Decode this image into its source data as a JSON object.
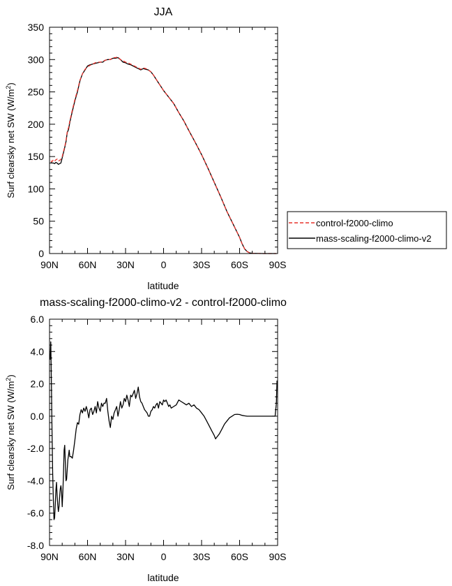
{
  "chart_data": [
    {
      "type": "line",
      "title": "JJA",
      "xlabel": "latitude",
      "ylabel": "Surf clearsky net SW (W/m²)",
      "ylabel_main": "Surf clearsky net SW (W/m",
      "ylabel_sup": "2",
      "ylabel_end": ")",
      "xlim": [
        90,
        -90
      ],
      "ylim": [
        0,
        350
      ],
      "x_ticks": [
        90,
        60,
        30,
        0,
        -30,
        -60,
        -90
      ],
      "x_tick_labels": [
        "90N",
        "60N",
        "30N",
        "0",
        "30S",
        "60S",
        "90S"
      ],
      "y_ticks": [
        0,
        50,
        100,
        150,
        200,
        250,
        300,
        350
      ],
      "y_tick_labels": [
        "0",
        "50",
        "100",
        "150",
        "200",
        "250",
        "300",
        "350"
      ],
      "legend": {
        "placement": "right",
        "entries": [
          {
            "label": "control-f2000-climo",
            "color": "#e8322c",
            "dash": "dashed"
          },
          {
            "label": "mass-scaling-f2000-climo-v2",
            "color": "#000000",
            "dash": "solid"
          }
        ]
      },
      "series": [
        {
          "name": "control-f2000-climo",
          "color": "#e8322c",
          "dash": "dashed",
          "x": [
            89,
            88,
            87,
            86,
            85,
            84,
            83,
            82,
            81,
            80,
            79,
            78,
            77,
            76,
            75,
            74,
            72,
            70,
            68,
            66,
            64,
            62,
            60,
            58,
            56,
            54,
            52,
            50,
            48,
            46,
            44,
            42,
            40,
            38,
            36,
            34,
            32,
            30,
            28,
            26,
            24,
            22,
            20,
            18,
            16,
            14,
            12,
            10,
            8,
            6,
            4,
            2,
            0,
            -4,
            -8,
            -12,
            -16,
            -20,
            -25,
            -30,
            -35,
            -40,
            -45,
            -50,
            -55,
            -60,
            -62,
            -64,
            -66,
            -68,
            -70,
            -75,
            -80,
            -85,
            -89
          ],
          "y": [
            143,
            142,
            145,
            143,
            145,
            146,
            143,
            144,
            146,
            150,
            158,
            165,
            175,
            188,
            195,
            205,
            222,
            238,
            252,
            268,
            278,
            285,
            289,
            291,
            293,
            295,
            296,
            296,
            297,
            299,
            300,
            300,
            303,
            303,
            304,
            300,
            298,
            296,
            295,
            293,
            291,
            289,
            287,
            285,
            287,
            286,
            284,
            281,
            276,
            270,
            264,
            258,
            252,
            242,
            232,
            218,
            205,
            190,
            172,
            153,
            132,
            110,
            88,
            65,
            45,
            25,
            15,
            7,
            3,
            1,
            0.3,
            0.1,
            0,
            0,
            0
          ]
        },
        {
          "name": "mass-scaling-f2000-climo-v2",
          "color": "#000000",
          "dash": "solid",
          "x": [
            89,
            88,
            87,
            86,
            85,
            84,
            83,
            82,
            81,
            80,
            79,
            78,
            77,
            76,
            75,
            74,
            72,
            70,
            68,
            66,
            64,
            62,
            60,
            58,
            56,
            54,
            52,
            50,
            48,
            46,
            44,
            42,
            40,
            38,
            36,
            34,
            32,
            30,
            28,
            26,
            24,
            22,
            20,
            18,
            16,
            14,
            12,
            10,
            8,
            6,
            4,
            2,
            0,
            -4,
            -8,
            -12,
            -16,
            -20,
            -25,
            -30,
            -35,
            -40,
            -45,
            -50,
            -55,
            -60,
            -62,
            -64,
            -66,
            -68,
            -70,
            -75,
            -80,
            -85,
            -89
          ],
          "y": [
            141,
            140,
            140,
            139,
            141,
            140,
            138,
            139,
            140,
            148,
            156,
            164,
            173,
            187,
            192,
            203,
            220,
            236,
            250,
            267,
            278,
            284,
            290,
            292,
            293,
            294,
            295,
            296,
            296,
            299,
            300,
            300,
            302,
            302,
            303,
            300,
            296,
            295,
            293,
            292,
            290,
            288,
            286,
            284,
            286,
            285,
            284,
            281,
            276,
            270,
            264,
            258,
            252,
            242,
            232,
            218,
            205,
            190,
            172,
            153,
            132,
            110,
            88,
            65,
            45,
            25,
            15,
            7,
            3,
            1,
            0.3,
            0.1,
            0,
            0,
            0
          ]
        }
      ]
    },
    {
      "type": "line",
      "title": "mass-scaling-f2000-climo-v2 - control-f2000-climo",
      "xlabel": "latitude",
      "ylabel": "Surf clearsky net SW (W/m²)",
      "ylabel_main": "Surf clearsky net SW (W/m",
      "ylabel_sup": "2",
      "ylabel_end": ")",
      "xlim": [
        90,
        -90
      ],
      "ylim": [
        -8.0,
        6.0
      ],
      "x_ticks": [
        90,
        60,
        30,
        0,
        -30,
        -60,
        -90
      ],
      "x_tick_labels": [
        "90N",
        "60N",
        "30N",
        "0",
        "30S",
        "60S",
        "90S"
      ],
      "y_ticks": [
        -8,
        -6,
        -4,
        -2,
        0,
        2,
        4,
        6
      ],
      "y_tick_labels": [
        "-8.0",
        "-6.0",
        "-4.0",
        "-2.0",
        "0.0",
        "2.0",
        "4.0",
        "6.0"
      ],
      "series": [
        {
          "name": "",
          "color": "#000000",
          "dash": "solid",
          "x": [
            89.5,
            89,
            88.5,
            88,
            87.5,
            87,
            86.5,
            86,
            85.5,
            85,
            84.5,
            84,
            83.5,
            83,
            82.5,
            82,
            81.5,
            81,
            80.5,
            80,
            79.5,
            79,
            78.5,
            78,
            77.5,
            77,
            76.5,
            76,
            75.5,
            75,
            74.5,
            74,
            73,
            72,
            71,
            70,
            69,
            68,
            67,
            66,
            65,
            64,
            63,
            62,
            61,
            60,
            59,
            58,
            57,
            56,
            55,
            54,
            53,
            52,
            51,
            50,
            49,
            48,
            47,
            46,
            45,
            44,
            43,
            42,
            41,
            40,
            39,
            38,
            37,
            36,
            35,
            34,
            33,
            32,
            31,
            30,
            29,
            28,
            27,
            26,
            25,
            24,
            23,
            22,
            21,
            20,
            19,
            18,
            17,
            16,
            15,
            14,
            13,
            12,
            11,
            10,
            9,
            8,
            7,
            6,
            5,
            4,
            3,
            2,
            1,
            0,
            -1,
            -2,
            -3,
            -4,
            -5,
            -6,
            -8,
            -10,
            -12,
            -14,
            -16,
            -18,
            -20,
            -22,
            -24,
            -26,
            -28,
            -30,
            -32,
            -34,
            -36,
            -38,
            -40,
            -41,
            -42,
            -44,
            -46,
            -48,
            -50,
            -52,
            -54,
            -56,
            -58,
            -60,
            -62,
            -64,
            -66,
            -68,
            -70,
            -72,
            -74,
            -76,
            -78,
            -80,
            -82,
            -84,
            -86,
            -88,
            -89,
            -89.5
          ],
          "y": [
            3.5,
            4.6,
            2.0,
            -1.0,
            -3.5,
            -5.2,
            -6.4,
            -6.3,
            -5.5,
            -4.6,
            -4.1,
            -4.9,
            -5.5,
            -5.9,
            -5.6,
            -5.0,
            -4.5,
            -4.3,
            -4.7,
            -5.6,
            -4.7,
            -3.6,
            -2.1,
            -1.8,
            -2.9,
            -4.0,
            -3.9,
            -3.3,
            -2.7,
            -2.4,
            -2.1,
            -2.5,
            -2.5,
            -2.6,
            -2.1,
            -1.5,
            -0.8,
            -0.4,
            -0.5,
            0.1,
            0.4,
            0.2,
            0.5,
            0.3,
            0.6,
            0.3,
            -0.1,
            0.4,
            0.5,
            0.1,
            0.3,
            0.6,
            0.2,
            0.9,
            0.5,
            0.3,
            0.8,
            0.6,
            0.8,
            0.8,
            1.1,
            0.3,
            -0.3,
            -0.7,
            0.0,
            -0.2,
            0.2,
            0.4,
            0.6,
            0.0,
            0.4,
            0.9,
            0.5,
            0.7,
            1.1,
            0.9,
            1.3,
            1.0,
            0.6,
            1.3,
            1.2,
            1.4,
            1.6,
            1.1,
            1.4,
            1.8,
            1.2,
            0.9,
            0.8,
            0.6,
            0.4,
            0.3,
            0.2,
            0.0,
            0.0,
            0.3,
            0.4,
            0.6,
            0.5,
            0.7,
            0.8,
            0.5,
            0.9,
            0.8,
            0.7,
            1.0,
            0.9,
            1.0,
            0.8,
            0.6,
            0.7,
            0.5,
            0.6,
            0.7,
            1.0,
            0.9,
            0.8,
            0.7,
            0.8,
            0.6,
            0.7,
            0.5,
            0.4,
            0.2,
            0.0,
            -0.3,
            -0.6,
            -0.9,
            -1.2,
            -1.4,
            -1.3,
            -1.1,
            -0.8,
            -0.5,
            -0.3,
            -0.1,
            0.0,
            0.1,
            0.12,
            0.1,
            0.05,
            0.02,
            0.0,
            0.0,
            0.0,
            0.0,
            0.0,
            0.0,
            0.0,
            0.0,
            0.0,
            0.0,
            0.0,
            0.0,
            0.8,
            2.2
          ]
        }
      ]
    }
  ]
}
